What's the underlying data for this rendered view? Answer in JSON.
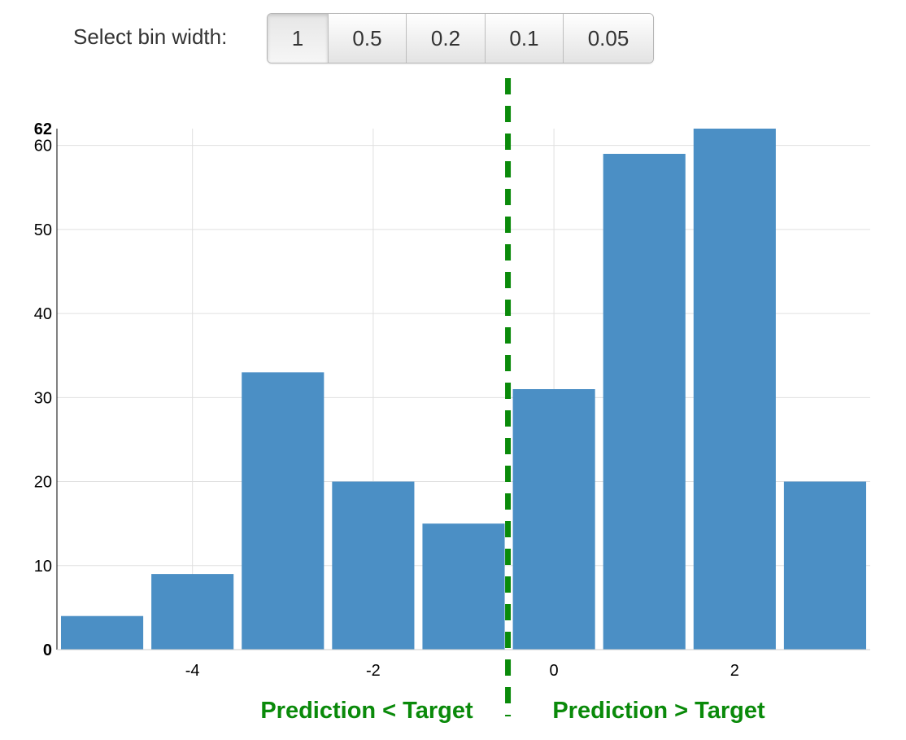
{
  "controls": {
    "label": "Select bin width:",
    "options": [
      "1",
      "0.5",
      "0.2",
      "0.1",
      "0.05"
    ],
    "selected": "1"
  },
  "colors": {
    "bar": "#4b8fc5",
    "reference_line": "#0a8a0a",
    "annotation": "#0a8a0a",
    "grid": "#e0e0e0"
  },
  "chart_data": {
    "type": "bar",
    "title": "",
    "xlabel": "",
    "ylabel": "",
    "bin_width": 1,
    "bin_starts": [
      -5.5,
      -4.5,
      -3.5,
      -2.5,
      -1.5,
      -0.5,
      0.5,
      1.5,
      2.5
    ],
    "values": [
      4,
      9,
      33,
      20,
      15,
      31,
      59,
      62,
      20
    ],
    "xlim": [
      -5.5,
      3.5
    ],
    "ylim": [
      0,
      62
    ],
    "x_ticks": [
      -4,
      -2,
      0,
      2
    ],
    "y_ticks": [
      10,
      20,
      30,
      40,
      50,
      60
    ],
    "y_extreme_labels": [
      "0",
      "62"
    ],
    "grid": true,
    "reference_line": {
      "x": -0.5,
      "style": "dashed"
    },
    "annotations": {
      "left": "Prediction < Target",
      "right": "Prediction > Target"
    }
  }
}
